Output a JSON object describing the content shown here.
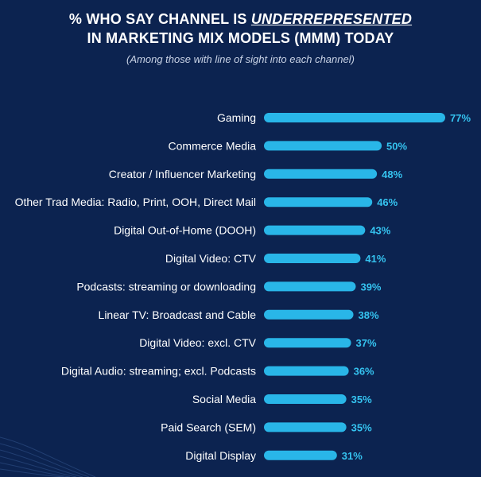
{
  "title": {
    "prefix": "% WHO SAY CHANNEL IS ",
    "emphasis": "UNDERREPRESENTED",
    "line2": "IN MARKETING MIX MODELS (MMM) TODAY",
    "subtitle": "(Among those with line of sight into each channel)"
  },
  "colors": {
    "background": "#0c2350",
    "bar": "#29b6e8",
    "value_label": "#35c3f0",
    "category_label": "#ffffff"
  },
  "chart_data": {
    "type": "bar",
    "orientation": "horizontal",
    "title": "% WHO SAY CHANNEL IS UNDERREPRESENTED IN MARKETING MIX MODELS (MMM) TODAY",
    "subtitle": "(Among those with line of sight into each channel)",
    "value_suffix": "%",
    "xlim": [
      0,
      100
    ],
    "grid": false,
    "categories": [
      "Gaming",
      "Commerce Media",
      "Creator / Influencer Marketing",
      "Other Trad Media: Radio, Print, OOH, Direct Mail",
      "Digital Out-of-Home (DOOH)",
      "Digital Video: CTV",
      "Podcasts: streaming or downloading",
      "Linear TV: Broadcast and Cable",
      "Digital Video: excl. CTV",
      "Digital Audio: streaming; excl. Podcasts",
      "Social Media",
      "Paid Search (SEM)",
      "Digital Display"
    ],
    "values": [
      77,
      50,
      48,
      46,
      43,
      41,
      39,
      38,
      37,
      36,
      35,
      35,
      31
    ]
  }
}
